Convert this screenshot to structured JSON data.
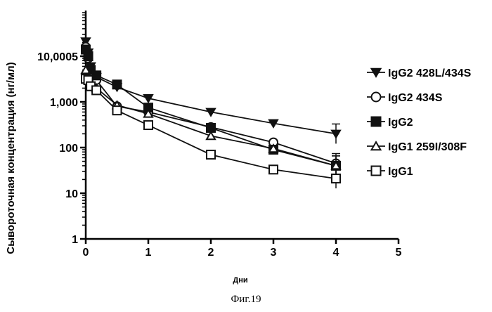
{
  "figure_caption": "Фиг.19",
  "chart_data": {
    "type": "line",
    "title": "",
    "xlabel": "Дни",
    "ylabel": "Сывороточная концентрация (нг/мл)",
    "xlim": [
      0,
      5
    ],
    "ylim": [
      1,
      100000
    ],
    "yscale": "log",
    "x_ticks": [
      0,
      1,
      2,
      3,
      4,
      5
    ],
    "x_tick_labels": [
      "0",
      "1",
      "2",
      "3",
      "4",
      "5"
    ],
    "y_ticks": [
      1,
      10,
      100,
      1000,
      10000
    ],
    "y_tick_labels": [
      "1",
      "10",
      "100",
      "1,000",
      "10,0005"
    ],
    "legend_position": "right",
    "series": [
      {
        "name": "IgG2 428L/434S",
        "marker": "triangle-down-filled",
        "x": [
          0,
          0.04,
          0.08,
          0.17,
          0.5,
          1,
          2,
          3,
          4
        ],
        "y": [
          21000,
          12000,
          6000,
          3500,
          2100,
          1200,
          600,
          340,
          200
        ]
      },
      {
        "name": "IgG2 434S",
        "marker": "circle-open",
        "x": [
          0,
          0.04,
          0.08,
          0.17,
          0.5,
          1,
          2,
          3,
          4
        ],
        "y": [
          16000,
          9000,
          4500,
          3000,
          800,
          600,
          280,
          130,
          45
        ]
      },
      {
        "name": "IgG2",
        "marker": "square-filled",
        "x": [
          0,
          0.04,
          0.08,
          0.17,
          0.5,
          1,
          2,
          3,
          4
        ],
        "y": [
          14000,
          10000,
          5000,
          3800,
          2400,
          750,
          270,
          90,
          40
        ]
      },
      {
        "name": "IgG1 259I/308F",
        "marker": "triangle-up-open",
        "x": [
          0,
          0.04,
          0.08,
          0.17,
          0.5,
          1,
          2,
          3,
          4
        ],
        "y": [
          5000,
          3500,
          2500,
          2000,
          850,
          550,
          180,
          95,
          40
        ]
      },
      {
        "name": "IgG1",
        "marker": "square-open",
        "x": [
          0,
          0.04,
          0.08,
          0.17,
          0.5,
          1,
          2,
          3,
          4
        ],
        "y": [
          3200,
          3000,
          2200,
          1800,
          650,
          310,
          70,
          33,
          21
        ]
      }
    ]
  }
}
